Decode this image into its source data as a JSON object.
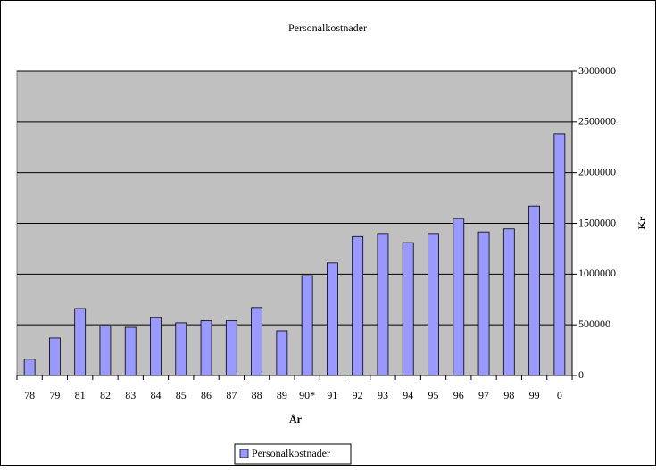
{
  "chart_data": {
    "type": "bar",
    "title": "Personalkostnader",
    "categories": [
      "78",
      "79",
      "81",
      "82",
      "83",
      "84",
      "85",
      "86",
      "87",
      "88",
      "89",
      "90*",
      "91",
      "92",
      "93",
      "94",
      "95",
      "96",
      "97",
      "98",
      "99",
      "0"
    ],
    "series": [
      {
        "name": "Personalkostnader",
        "color": "#9999ff",
        "values": [
          160000,
          370000,
          660000,
          490000,
          475000,
          570000,
          520000,
          540000,
          540000,
          670000,
          440000,
          985000,
          1110000,
          1370000,
          1400000,
          1310000,
          1400000,
          1550000,
          1415000,
          1445000,
          1670000,
          2385000
        ]
      }
    ],
    "x_label": "År",
    "y_label": "Kr",
    "ylim": [
      0,
      3000000
    ],
    "yticks": [
      0,
      500000,
      1000000,
      1500000,
      2000000,
      2500000,
      3000000
    ],
    "grid": true,
    "legend": "bottom",
    "plot_background": "#c0c0c0"
  }
}
